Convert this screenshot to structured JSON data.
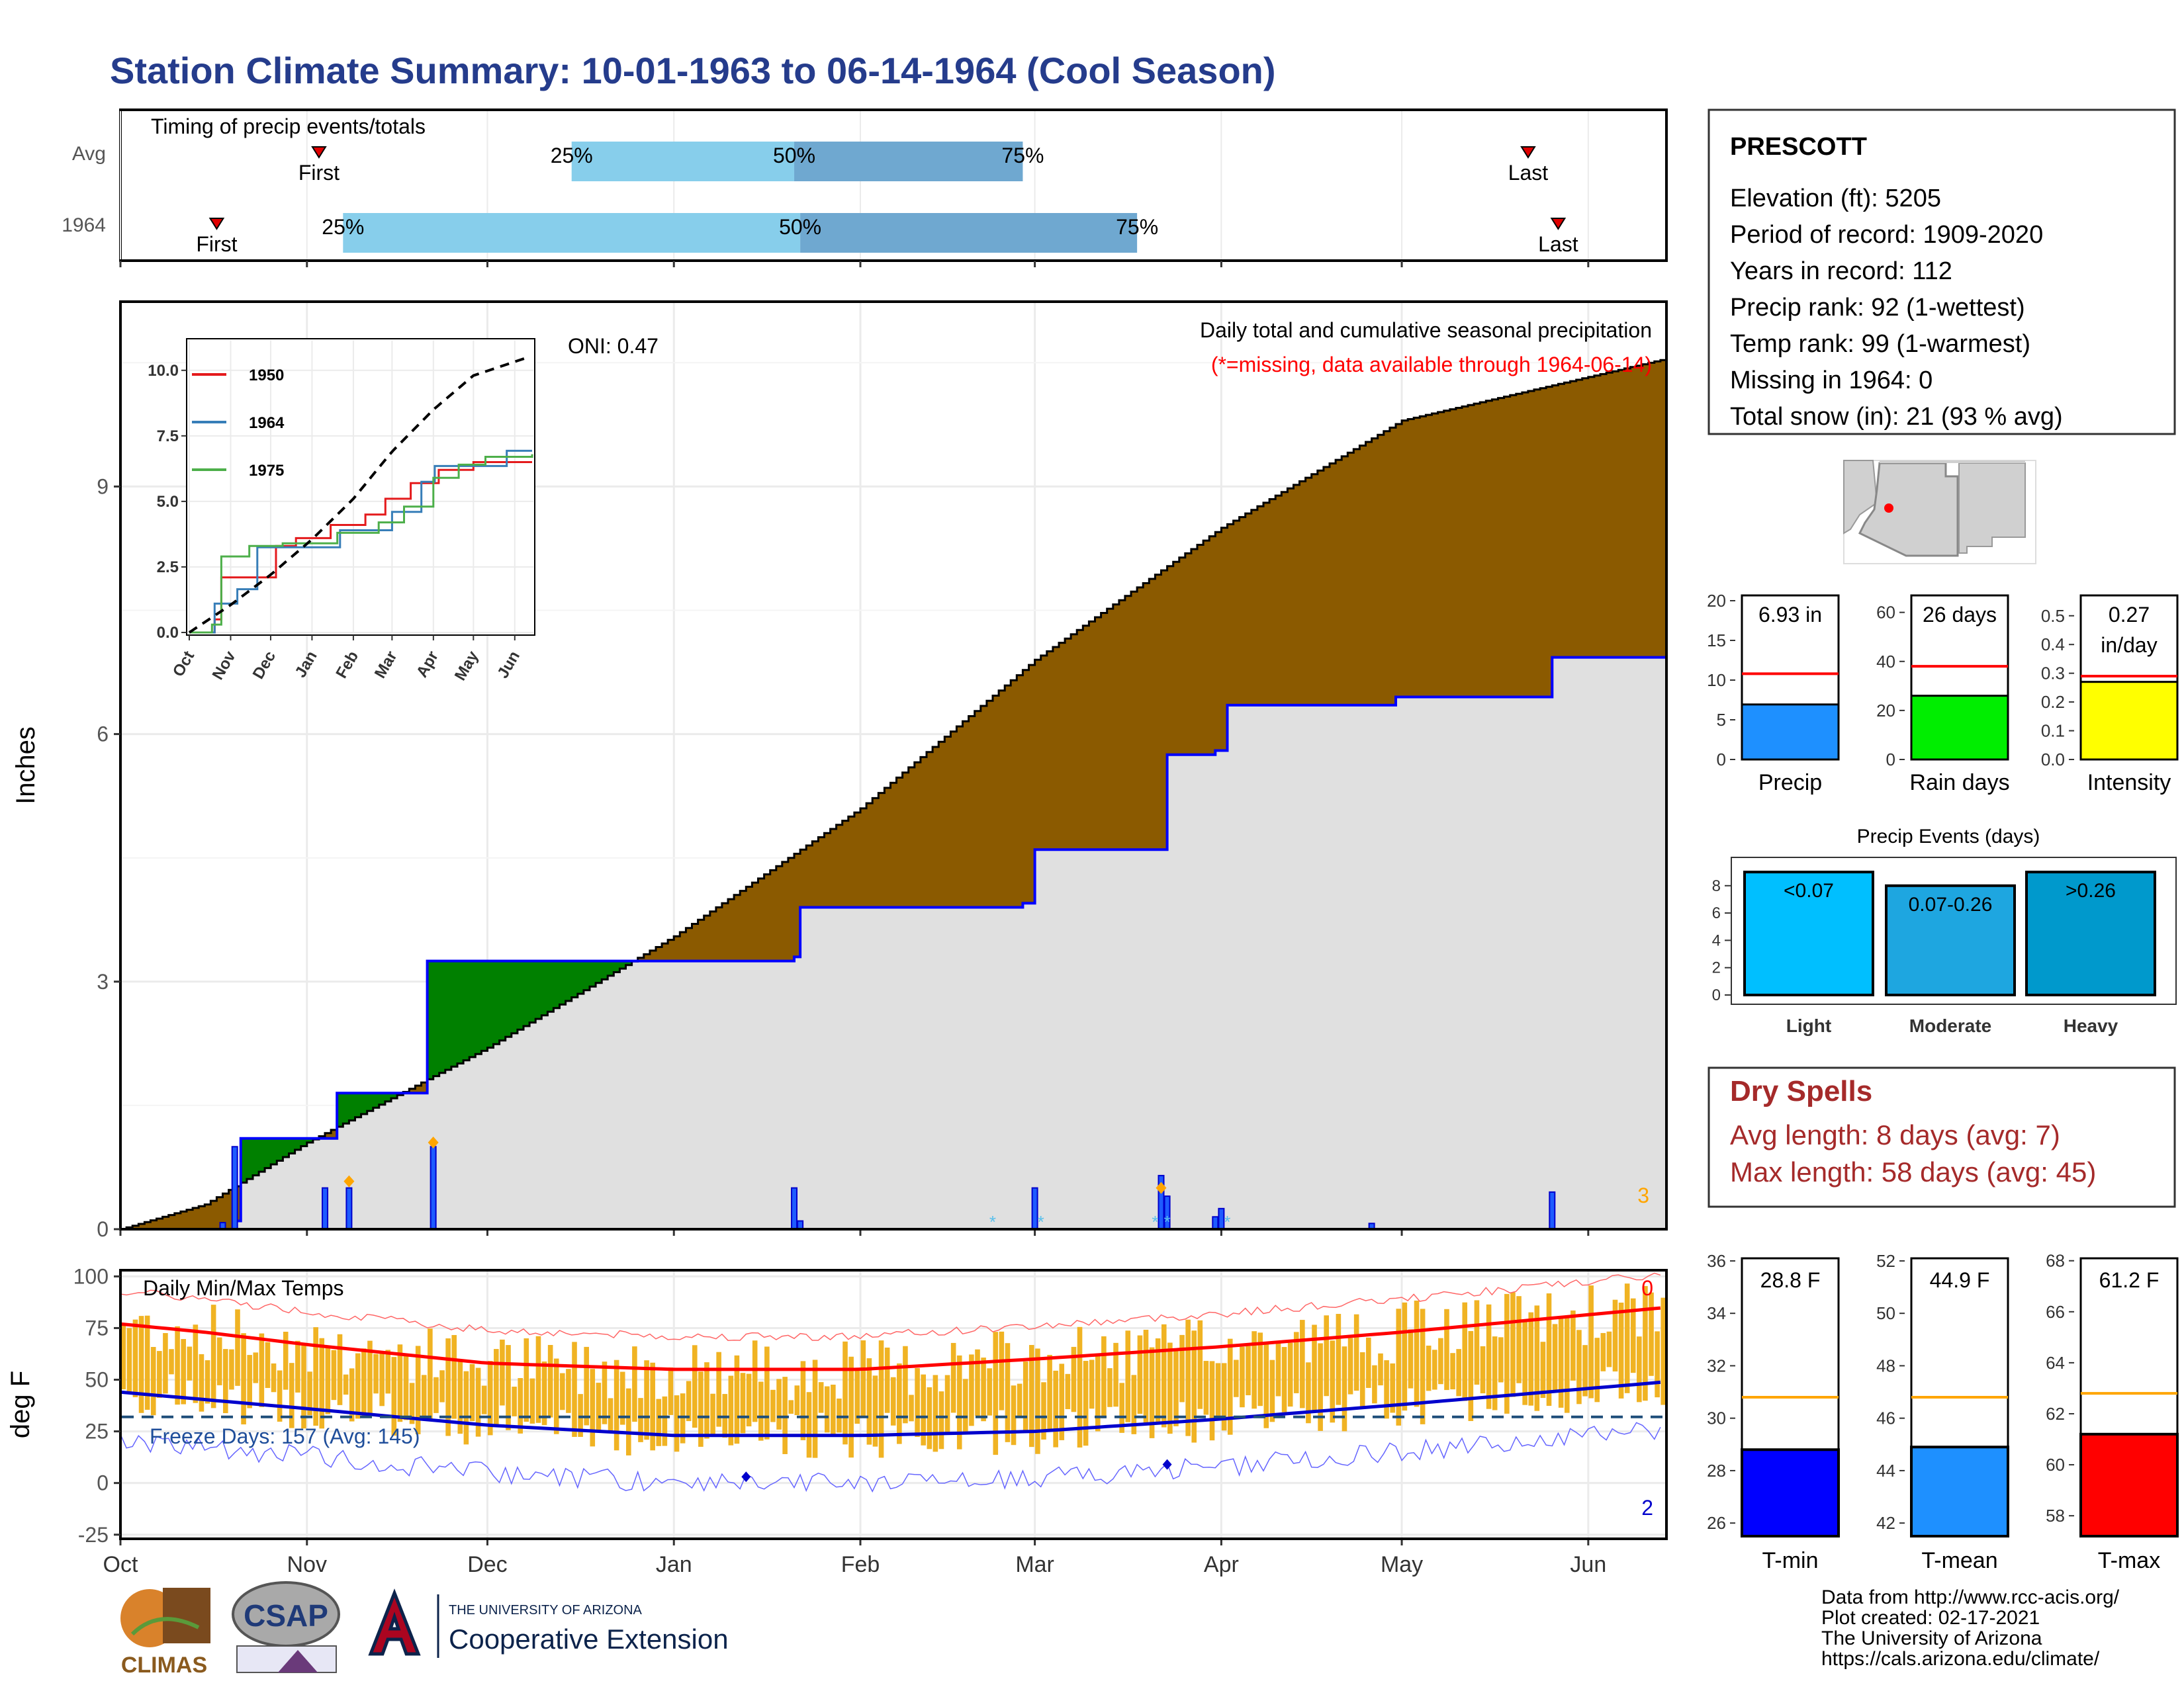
{
  "title": "Station Climate Summary: 10-01-1963 to 06-14-1964 (Cool Season)",
  "timing": {
    "label": "Timing of precip events/totals",
    "rows": [
      {
        "name": "Avg",
        "first": "Nov 3",
        "last": "May 22",
        "p25": "Dec 15",
        "p50": "Jan 21",
        "p75": "Feb 28"
      },
      {
        "name": "1964",
        "first": "Oct 17",
        "last": "May 27",
        "p25": "Nov 7",
        "p50": "Jan 22",
        "p75": "Mar 18"
      }
    ],
    "first_label": "First",
    "last_label": "Last",
    "pct_labels": [
      "25%",
      "50%",
      "75%"
    ]
  },
  "precip_panel": {
    "ylabel": "Inches",
    "yticks": [
      "0",
      "3",
      "6",
      "9"
    ],
    "header": "Daily total and cumulative seasonal precipitation",
    "missing_note": "(*=missing, data available through 1964-06-14)",
    "oni": "ONI: 0.47",
    "missing_count": "3"
  },
  "inset": {
    "yticks": [
      "0.0",
      "2.5",
      "5.0",
      "7.5",
      "10.0"
    ],
    "xticks": [
      "Oct",
      "Nov",
      "Dec",
      "Jan",
      "Feb",
      "Mar",
      "Apr",
      "May",
      "Jun"
    ],
    "legend": [
      {
        "name": "1950",
        "color": "#e41a1c"
      },
      {
        "name": "1964",
        "color": "#377eb8"
      },
      {
        "name": "1975",
        "color": "#4daf4a"
      }
    ]
  },
  "temp_panel": {
    "ylabel": "deg F",
    "yticks": [
      "-25",
      "0",
      "25",
      "50",
      "75",
      "100"
    ],
    "header": "Daily Min/Max Temps",
    "freeze": "Freeze Days: 157 (Avg: 145)",
    "max_missing": "0",
    "min_missing": "2"
  },
  "months": [
    "Oct",
    "Nov",
    "Dec",
    "Jan",
    "Feb",
    "Mar",
    "Apr",
    "May",
    "Jun"
  ],
  "station": {
    "name": "PRESCOTT",
    "lines": [
      "Elevation (ft): 5205",
      "Period of record: 1909-2020",
      "Years in record: 112",
      "Precip rank: 92 (1-wettest)",
      "Temp rank: 99 (1-warmest)",
      "Missing in 1964: 0",
      "Total snow (in): 21 (93 % avg)"
    ]
  },
  "mini_bars": [
    {
      "label": "Precip",
      "value_text": "6.93 in",
      "value": 6.93,
      "avg": 10.8,
      "max": 21,
      "ticks": [
        "0",
        "5",
        "10",
        "15",
        "20"
      ],
      "color": "#1e90ff"
    },
    {
      "label": "Rain days",
      "value_text": "26 days",
      "value": 26,
      "avg": 38,
      "max": 68,
      "ticks": [
        "0",
        "20",
        "40",
        "60"
      ],
      "color": "#00ee00"
    },
    {
      "label": "Intensity",
      "value_text_1": "0.27",
      "value_text_2": "in/day",
      "value": 0.27,
      "avg": 0.29,
      "max": 0.58,
      "ticks": [
        "0.0",
        "0.1",
        "0.2",
        "0.3",
        "0.4",
        "0.5"
      ],
      "color": "#ffff00"
    }
  ],
  "events": {
    "title": "Precip Events (days)",
    "ticks": [
      "0",
      "2",
      "4",
      "6",
      "8"
    ],
    "bars": [
      {
        "label": "Light",
        "range": "<0.07",
        "value": 9,
        "color": "#00bfff"
      },
      {
        "label": "Moderate",
        "range": "0.07-0.26",
        "value": 8,
        "color": "#1ea6e0"
      },
      {
        "label": "Heavy",
        "range": ">0.26",
        "value": 9,
        "color": "#0099cc"
      }
    ]
  },
  "dry_spells": {
    "title": "Dry Spells",
    "avg": "Avg length: 8 days (avg: 7)",
    "max": "Max length: 58 days (avg: 45)"
  },
  "temp_bars": [
    {
      "label": "T-min",
      "value_text": "28.8 F",
      "value": 28.8,
      "avg": 30.8,
      "min": 25.5,
      "max": 36.2,
      "ticks": [
        "28",
        "30",
        "32",
        "34",
        "36"
      ],
      "tick_vals": [
        28,
        30,
        32,
        34,
        36
      ],
      "extra_ticks": [
        "26"
      ],
      "color": "#0000ff"
    },
    {
      "label": "T-mean",
      "value_text": "44.9 F",
      "value": 44.9,
      "avg": 46.8,
      "min": 41.5,
      "max": 52.2,
      "ticks": [
        "42",
        "44",
        "46",
        "48",
        "50",
        "52"
      ],
      "tick_vals": [
        42,
        44,
        46,
        48,
        50,
        52
      ],
      "color": "#1e90ff"
    },
    {
      "label": "T-max",
      "value_text": "61.2 F",
      "value": 61.2,
      "avg": 62.8,
      "min": 57.2,
      "max": 68.2,
      "ticks": [
        "58",
        "60",
        "62",
        "64",
        "66",
        "68"
      ],
      "tick_vals": [
        58,
        60,
        62,
        64,
        66,
        68
      ],
      "color": "#ff0000"
    }
  ],
  "footer": {
    "lines": [
      "Data from http://www.rcc-acis.org/",
      "Plot created: 02-17-2021",
      "The University of Arizona",
      "https://cals.arizona.edu/climate/"
    ],
    "logo_climas": "CLIMAS",
    "logo_csap": "CSAP",
    "logo_ua_top": "THE UNIVERSITY OF ARIZONA",
    "logo_ua_bottom": "Cooperative Extension"
  },
  "chart_data": {
    "type": "area",
    "x_range": [
      "1963-10-01",
      "1964-06-14"
    ],
    "series": [
      {
        "name": "1964",
        "kind": "cumulative precip (in)",
        "x": [
          "1963-10-01",
          "1963-10-20",
          "1963-10-21",
          "1963-11-01",
          "1963-11-06",
          "1963-11-21",
          "1964-01-21",
          "1964-01-22",
          "1964-02-28",
          "1964-03-01",
          "1964-03-22",
          "1964-03-23",
          "1964-03-31",
          "1964-04-02",
          "1964-04-30",
          "1964-05-26",
          "1964-06-14"
        ],
        "y": [
          0,
          0.1,
          1.1,
          1.1,
          1.65,
          3.25,
          3.3,
          3.9,
          3.95,
          4.6,
          4.6,
          5.75,
          5.8,
          6.35,
          6.45,
          6.93,
          6.93
        ]
      },
      {
        "kind": "average cumulative precip (in)",
        "x": [
          "1963-10-01",
          "1963-10-15",
          "1963-11-01",
          "1963-12-01",
          "1964-01-01",
          "1964-02-01",
          "1964-03-01",
          "1964-04-01",
          "1964-05-01",
          "1964-06-14"
        ],
        "y": [
          0,
          0.3,
          1.05,
          2.2,
          3.55,
          5.1,
          6.9,
          8.5,
          9.8,
          10.55
        ]
      },
      {
        "kind": "daily precip (in)",
        "x": [
          "1963-10-18",
          "1963-10-20",
          "1963-11-04",
          "1963-11-08",
          "1963-11-22",
          "1964-01-21",
          "1964-01-22",
          "1964-03-01",
          "1964-03-22",
          "1964-03-23",
          "1964-03-31",
          "1964-04-01",
          "1964-04-26",
          "1964-05-26"
        ],
        "y": [
          0.08,
          1.0,
          0.5,
          0.5,
          1.0,
          0.5,
          0.1,
          0.5,
          0.65,
          0.4,
          0.15,
          0.25,
          0.07,
          0.45
        ]
      }
    ],
    "inset_series": [
      {
        "name": "1950",
        "x": [
          "1963-10-01",
          "1963-10-20",
          "1963-10-25",
          "1963-11-10",
          "1963-12-05",
          "1963-12-20",
          "1964-01-15",
          "1964-02-10",
          "1964-02-25",
          "1964-03-15",
          "1964-04-05",
          "1964-05-01",
          "1964-06-14"
        ],
        "y": [
          0,
          0.5,
          2.1,
          2.1,
          3.3,
          3.6,
          4.1,
          4.5,
          5.1,
          5.7,
          6.2,
          6.5,
          6.5
        ]
      },
      {
        "name": "1964",
        "x": [
          "1963-10-01",
          "1963-10-20",
          "1963-11-06",
          "1963-11-21",
          "1964-01-22",
          "1964-03-01",
          "1964-03-23",
          "1964-04-02",
          "1964-05-26",
          "1964-06-14"
        ],
        "y": [
          0,
          1.1,
          1.65,
          3.25,
          3.9,
          4.6,
          5.75,
          6.35,
          6.93,
          6.93
        ]
      },
      {
        "name": "1975",
        "x": [
          "1963-10-01",
          "1963-10-18",
          "1963-10-25",
          "1963-11-15",
          "1963-12-10",
          "1964-01-20",
          "1964-02-20",
          "1964-03-10",
          "1964-04-01",
          "1964-04-20",
          "1964-05-10",
          "1964-06-14"
        ],
        "y": [
          0,
          0.3,
          2.9,
          3.3,
          3.4,
          3.8,
          4.2,
          4.8,
          5.9,
          6.4,
          6.7,
          6.8
        ]
      },
      {
        "name": "avg",
        "x": [
          "1963-10-01",
          "1963-11-01",
          "1963-12-01",
          "1964-01-01",
          "1964-02-01",
          "1964-03-01",
          "1964-04-01",
          "1964-05-01",
          "1964-06-14"
        ],
        "y": [
          0,
          1.05,
          2.2,
          3.55,
          5.1,
          6.9,
          8.5,
          9.8,
          10.55
        ]
      }
    ],
    "temperature": {
      "ylim": [
        -27,
        103
      ],
      "avg_max": {
        "x": [
          "1963-10-01",
          "1963-10-15",
          "1963-11-01",
          "1963-12-01",
          "1964-01-01",
          "1964-02-01",
          "1964-03-01",
          "1964-04-01",
          "1964-05-01",
          "1964-06-14"
        ],
        "y": [
          77,
          73,
          67,
          58,
          55,
          55,
          60,
          66,
          73,
          85
        ]
      },
      "avg_min": {
        "x": [
          "1963-10-01",
          "1963-11-01",
          "1963-12-01",
          "1964-01-01",
          "1964-02-01",
          "1964-03-01",
          "1964-04-01",
          "1964-05-01",
          "1964-06-14"
        ],
        "y": [
          44,
          36,
          28,
          23,
          23,
          25,
          31,
          38,
          49
        ]
      },
      "freeze_line": 32
    }
  }
}
